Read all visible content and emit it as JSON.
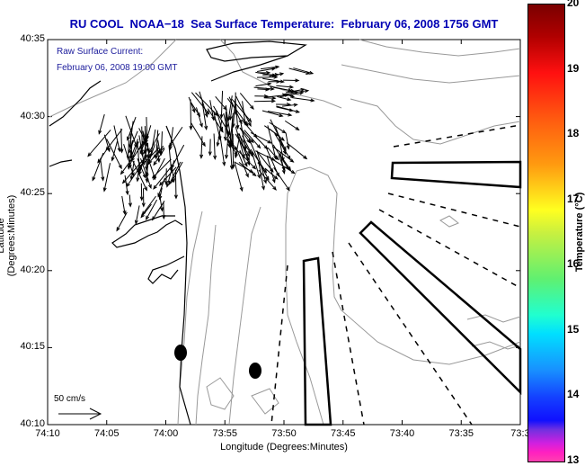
{
  "title": "RU COOL  NOAA−18  Sea Surface Temperature:  February 06, 2008 1756 GMT",
  "annotation": {
    "line1": "Raw Surface Current:",
    "line2": "February 06, 2008 19:00 GMT"
  },
  "scale_vector": {
    "label": "50 cm/s",
    "speed_cm_s": 50
  },
  "chart_data": {
    "type": "map",
    "title": "RU COOL  NOAA-18  Sea Surface Temperature:  February 06, 2008 1756 GMT",
    "xlabel": "Longitude (Degrees:Minutes)",
    "ylabel": "Latitude (Degrees:Minutes)",
    "x_ticks": [
      "74:10",
      "74:05",
      "74:00",
      "73:55",
      "73:50",
      "73:45",
      "73:40",
      "73:35",
      "73:3"
    ],
    "y_ticks": [
      "40:35",
      "40:30",
      "40:25",
      "40:20",
      "40:15",
      "40:10"
    ],
    "xlim_minutes_west": [
      74.1667,
      73.5
    ],
    "ylim_minutes": [
      40.1667,
      40.5833
    ],
    "colorbar": {
      "label": "Temperature (°C)",
      "ticks": [
        "20",
        "19",
        "18",
        "17",
        "16",
        "15",
        "14",
        "13"
      ],
      "range": [
        13,
        20
      ],
      "colormap": "jet-with-magenta-low"
    },
    "layers": [
      "coastline (black)",
      "bathymetry contours (gray)",
      "raw surface current vectors (black arrows) near harbor entrance",
      "shipping lane polygons (solid black)",
      "dashed lane boundary lines",
      "two filled black markers"
    ],
    "markers": [
      {
        "label": "marker-1",
        "lon": "73:59.0",
        "lat": "40:14.6"
      },
      {
        "label": "marker-2",
        "lon": "73:52.4",
        "lat": "40:13.5"
      }
    ]
  },
  "colorbar_tick_labels": [
    "20",
    "19",
    "18",
    "17",
    "16",
    "15",
    "14",
    "13"
  ],
  "colorbar_label": "Temperature (°C)"
}
